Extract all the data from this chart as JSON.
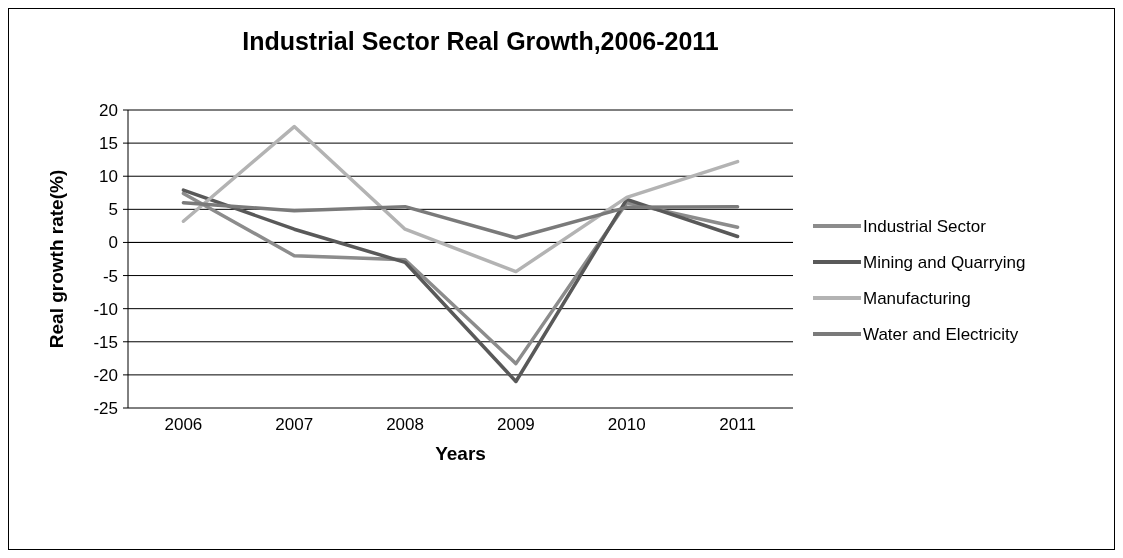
{
  "chart_data": {
    "type": "line",
    "title": "Industrial Sector Real Growth,2006-2011",
    "xlabel": "Years",
    "ylabel": "Real growth rate(%)",
    "categories": [
      "2006",
      "2007",
      "2008",
      "2009",
      "2010",
      "2011"
    ],
    "series": [
      {
        "name": "Industrial Sector",
        "color": "#8c8c8c",
        "values": [
          7.4,
          -2.0,
          -2.6,
          -18.3,
          6.0,
          2.3
        ]
      },
      {
        "name": "Mining and Quarrying",
        "color": "#595959",
        "values": [
          7.9,
          2.0,
          -3.0,
          -21.0,
          6.5,
          0.9
        ]
      },
      {
        "name": "Manufacturing",
        "color": "#b3b3b3",
        "values": [
          3.2,
          17.5,
          2.0,
          -4.4,
          6.8,
          12.2
        ]
      },
      {
        "name": "Water and Electricity",
        "color": "#7a7a7a",
        "values": [
          6.0,
          4.8,
          5.4,
          0.7,
          5.3,
          5.4
        ]
      }
    ],
    "ylim": [
      -25,
      20
    ],
    "yticks": [
      -25,
      -20,
      -15,
      -10,
      -5,
      0,
      5,
      10,
      15,
      20
    ],
    "grid": "y",
    "legend": "right",
    "marker": "none",
    "line_style": "solid"
  }
}
